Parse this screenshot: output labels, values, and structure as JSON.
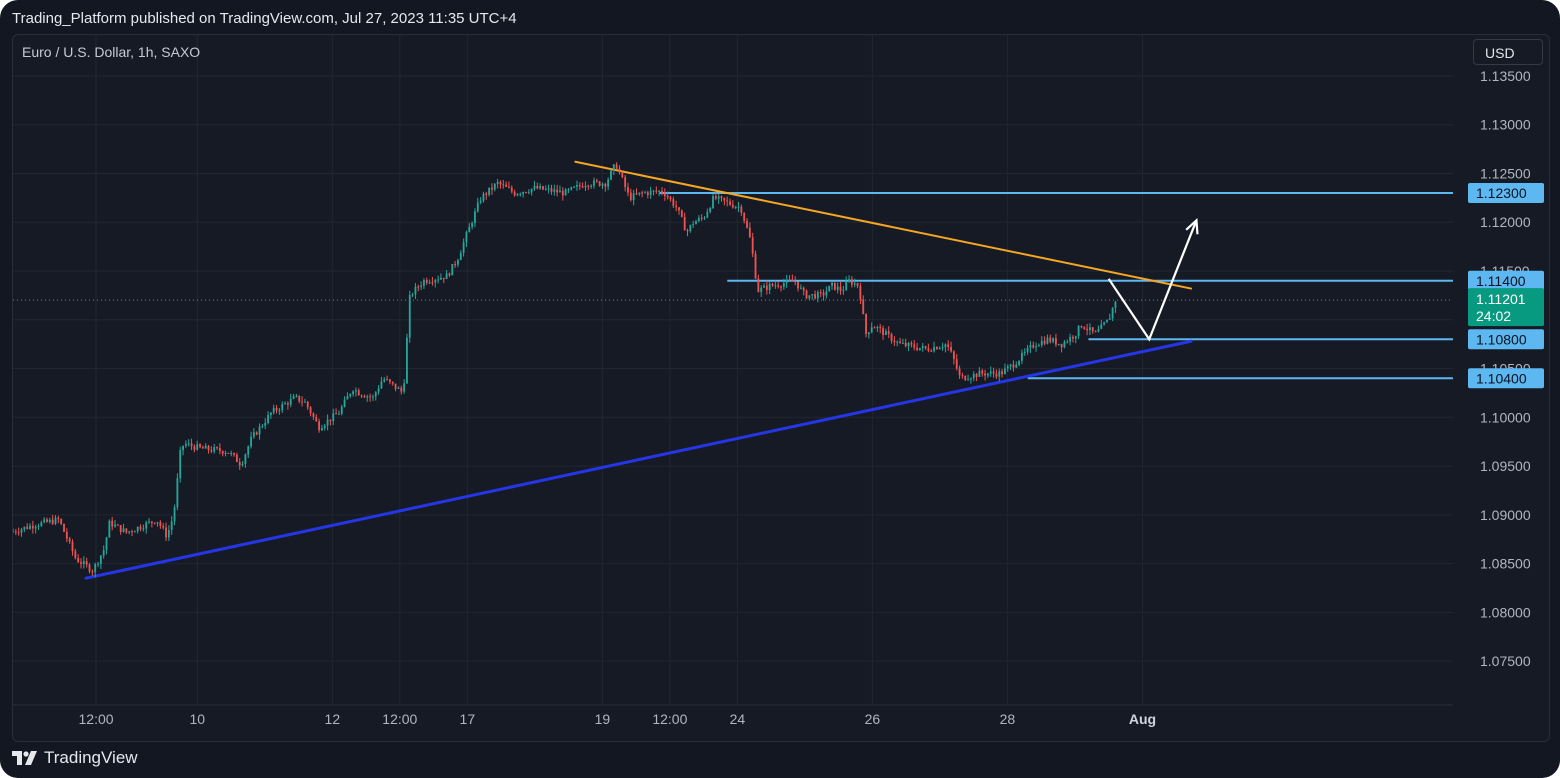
{
  "header": {
    "published_text": "Trading_Platform published on TradingView.com, Jul 27, 2023 11:35 UTC+4"
  },
  "chart_header": {
    "symbol_text": "Euro / U.S. Dollar, 1h, SAXO",
    "currency_button": "USD"
  },
  "footer": {
    "brand": "TradingView",
    "logo_icon": "tradingview-logo-icon"
  },
  "colors": {
    "up": "#26a69a",
    "down": "#ef5350",
    "bg": "#161a25",
    "grid": "#222632",
    "axis_text": "#b2b5be",
    "resistance": "#5db7f0",
    "downtrend": "#f5a623",
    "uptrend": "#2536e6",
    "projection": "#ffffff"
  },
  "chart_data": {
    "type": "candlestick",
    "title": "Euro / U.S. Dollar, 1h, SAXO",
    "ylim": [
      1.0705,
      1.1392
    ],
    "yticks": [
      "1.13500",
      "1.13000",
      "1.12500",
      "1.12000",
      "1.11500",
      "1.11000",
      "1.10500",
      "1.10000",
      "1.09500",
      "1.09000",
      "1.08500",
      "1.08000",
      "1.07500"
    ],
    "xticks": [
      "12:00",
      "10",
      "12",
      "12:00",
      "17",
      "19",
      "12:00",
      "24",
      "26",
      "28",
      "Aug"
    ],
    "x_tick_times": [
      0,
      1.5,
      3.5,
      4.5,
      5.5,
      7.5,
      8.5,
      9.5,
      11.5,
      13.5,
      15.5
    ],
    "x_tick_time_unit": "days from Jul 8 12:00",
    "x_visible_range": [
      -1.23,
      20.1
    ],
    "last_price": {
      "value": "1.11201",
      "timer": "24:02",
      "price": 1.11201
    },
    "price_levels": [
      {
        "label": "1.12300",
        "price": 1.123,
        "from_day": 8.35
      },
      {
        "label": "1.11400",
        "price": 1.114,
        "from_day": 9.35
      },
      {
        "label": "1.10800",
        "price": 1.108,
        "from_day": 14.7
      },
      {
        "label": "1.10400",
        "price": 1.104,
        "from_day": 13.8
      }
    ],
    "trendlines": [
      {
        "name": "downtrend",
        "points": [
          [
            7.1,
            1.1262
          ],
          [
            16.22,
            1.1132
          ]
        ]
      },
      {
        "name": "uptrend",
        "points": [
          [
            -0.15,
            1.0835
          ],
          [
            16.22,
            1.1078
          ]
        ]
      }
    ],
    "projection_path": [
      [
        15.0,
        1.1142
      ],
      [
        15.6,
        1.108
      ],
      [
        16.3,
        1.1202
      ]
    ],
    "path_keys": [
      [
        -1.23,
        1.0883
      ],
      [
        -0.9,
        1.089
      ],
      [
        -0.55,
        1.0895
      ],
      [
        -0.3,
        1.0855
      ],
      [
        -0.05,
        1.0843
      ],
      [
        0.12,
        1.0865
      ],
      [
        0.2,
        1.0892
      ],
      [
        0.45,
        1.0882
      ],
      [
        0.9,
        1.0895
      ],
      [
        1.05,
        1.0878
      ],
      [
        1.15,
        1.09
      ],
      [
        1.25,
        1.0965
      ],
      [
        1.3,
        1.0973
      ],
      [
        1.55,
        1.0968
      ],
      [
        1.95,
        1.0965
      ],
      [
        2.15,
        1.0952
      ],
      [
        2.3,
        1.0978
      ],
      [
        2.6,
        1.1005
      ],
      [
        2.95,
        1.102
      ],
      [
        3.1,
        1.1015
      ],
      [
        3.3,
        1.099
      ],
      [
        3.6,
        1.1005
      ],
      [
        3.8,
        1.103
      ],
      [
        3.9,
        1.1025
      ],
      [
        4.1,
        1.102
      ],
      [
        4.25,
        1.104
      ],
      [
        4.55,
        1.1025
      ],
      [
        4.65,
        1.1125
      ],
      [
        4.85,
        1.114
      ],
      [
        5.2,
        1.1145
      ],
      [
        5.35,
        1.1162
      ],
      [
        5.45,
        1.118
      ],
      [
        5.7,
        1.1225
      ],
      [
        5.95,
        1.124
      ],
      [
        6.2,
        1.123
      ],
      [
        6.5,
        1.1235
      ],
      [
        6.95,
        1.123
      ],
      [
        7.25,
        1.124
      ],
      [
        7.55,
        1.124
      ],
      [
        7.7,
        1.126
      ],
      [
        7.9,
        1.1225
      ],
      [
        8.1,
        1.123
      ],
      [
        8.4,
        1.1232
      ],
      [
        8.6,
        1.1215
      ],
      [
        8.75,
        1.119
      ],
      [
        8.85,
        1.12
      ],
      [
        9.0,
        1.1205
      ],
      [
        9.15,
        1.1225
      ],
      [
        9.55,
        1.1215
      ],
      [
        9.7,
        1.118
      ],
      [
        9.8,
        1.113
      ],
      [
        10.0,
        1.1135
      ],
      [
        10.35,
        1.114
      ],
      [
        10.5,
        1.1125
      ],
      [
        10.75,
        1.1125
      ],
      [
        10.9,
        1.1135
      ],
      [
        11.05,
        1.113
      ],
      [
        11.15,
        1.114
      ],
      [
        11.3,
        1.1135
      ],
      [
        11.4,
        1.1085
      ],
      [
        11.5,
        1.1095
      ],
      [
        11.9,
        1.1075
      ],
      [
        12.3,
        1.107
      ],
      [
        12.6,
        1.1075
      ],
      [
        12.7,
        1.106
      ],
      [
        12.8,
        1.104
      ],
      [
        13.1,
        1.1045
      ],
      [
        13.4,
        1.1045
      ],
      [
        13.6,
        1.1055
      ],
      [
        13.9,
        1.1075
      ],
      [
        14.1,
        1.108
      ],
      [
        14.3,
        1.1075
      ],
      [
        14.5,
        1.1085
      ],
      [
        14.6,
        1.1095
      ],
      [
        14.8,
        1.1085
      ],
      [
        15.0,
        1.11
      ],
      [
        15.1,
        1.112
      ]
    ],
    "bar_count": 390
  }
}
